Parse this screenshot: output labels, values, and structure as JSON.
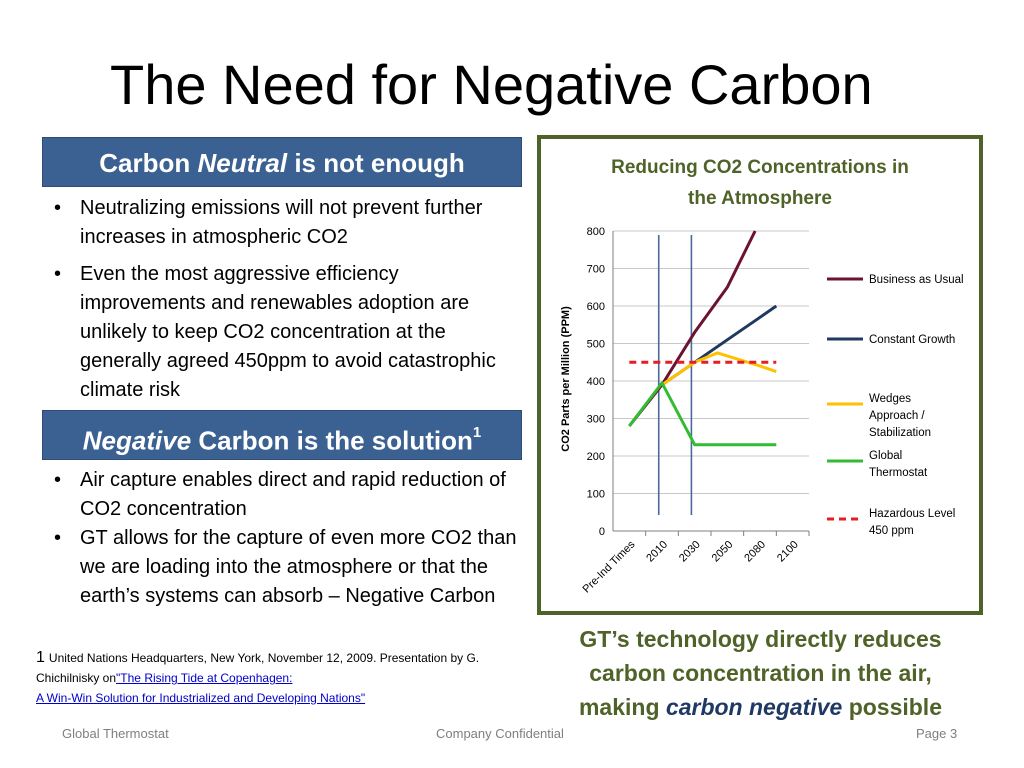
{
  "slide": {
    "title": "The Need for Negative Carbon",
    "banner1": {
      "prefix": "Carbon",
      "emphasis": "Neutral",
      "suffix": "is not enough"
    },
    "bullets1": [
      "Neutralizing emissions will not prevent further increases in atmospheric CO2",
      "Even the most aggressive  efficiency improvements and renewables adoption are unlikely to keep CO2 concentration at the generally agreed 450ppm to avoid catastrophic climate risk"
    ],
    "banner2": {
      "emphasis": "Negative",
      "suffix": "Carbon is the solution",
      "sup": "1"
    },
    "bullets2": [
      "Air capture enables direct and rapid reduction of CO2 concentration",
      "GT allows for the capture of even more CO2 than we are loading into the atmosphere or that the earth’s systems can absorb – Negative Carbon"
    ],
    "footnote": {
      "marker": "1",
      "text": "United Nations Headquarters, New York, November 12, 2009. Presentation by G. Chichilnisky on",
      "link_line1": "\"The Rising Tide at Copenhagen:",
      "link_line2": " A Win-Win Solution for Industrialized and Developing Nations\""
    },
    "callout": {
      "line1": "GT’s  technology directly reduces",
      "line2": "carbon concentration in the air,",
      "line3_prefix": "making",
      "line3_emphasis": "carbon negative",
      "line3_suffix": "possible"
    },
    "footer": {
      "left": "Global Thermostat",
      "center": "Company Confidential",
      "right": "Page 3"
    }
  },
  "chart_data": {
    "type": "line",
    "title_line1": "Reducing CO2 Concentrations in",
    "title_line2": "the Atmosphere",
    "ylabel": "CO2 Parts per Million (PPM)",
    "ylim": [
      0,
      800
    ],
    "yticks": [
      "0",
      "100",
      "200",
      "300",
      "400",
      "500",
      "600",
      "700",
      "800"
    ],
    "categories": [
      "Pre-Ind Times",
      "2010",
      "2030",
      "2050",
      "2080",
      "2100"
    ],
    "grid": true,
    "legend_position": "right",
    "vertical_markers_x": [
      0.9,
      1.9
    ],
    "series": [
      {
        "name": "Business as Usual",
        "color": "#6b1331",
        "dash": false,
        "points": [
          [
            0,
            280
          ],
          [
            1,
            390
          ],
          [
            2,
            530
          ],
          [
            3,
            650
          ],
          [
            3.85,
            800
          ]
        ]
      },
      {
        "name": "Constant Growth",
        "color": "#1f3a5f",
        "dash": false,
        "points": [
          [
            1,
            390
          ],
          [
            2,
            450
          ],
          [
            3,
            510
          ],
          [
            4,
            570
          ],
          [
            4.5,
            600
          ]
        ]
      },
      {
        "name": "Wedges Approach / Stabilization",
        "name_lines": [
          "Wedges",
          "Approach /",
          "Stabilization"
        ],
        "color": "#ffc000",
        "dash": false,
        "points": [
          [
            1,
            390
          ],
          [
            2,
            450
          ],
          [
            2.7,
            475
          ],
          [
            4,
            440
          ],
          [
            4.5,
            425
          ]
        ]
      },
      {
        "name": "Global Thermostat",
        "name_lines": [
          "Global",
          "Thermostat"
        ],
        "color": "#33bb33",
        "dash": false,
        "points": [
          [
            0,
            280
          ],
          [
            1,
            395
          ],
          [
            2,
            230
          ],
          [
            3,
            230
          ],
          [
            4.5,
            230
          ]
        ]
      },
      {
        "name": "Hazardous Level 450 ppm",
        "name_lines": [
          "Hazardous Level",
          "450 ppm"
        ],
        "color": "#e41e26",
        "dash": true,
        "points": [
          [
            0,
            450
          ],
          [
            4.5,
            450
          ]
        ]
      }
    ]
  }
}
